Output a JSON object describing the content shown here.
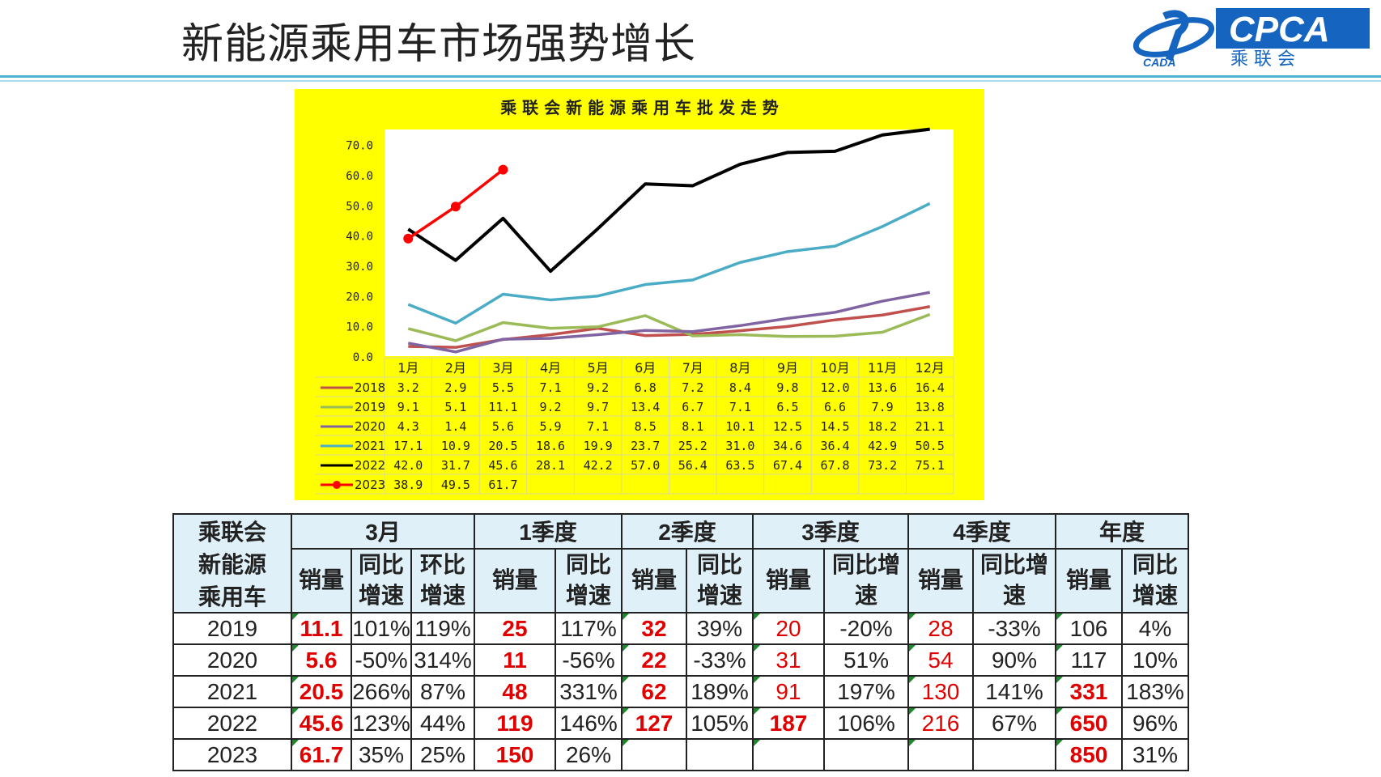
{
  "slide": {
    "title": "新能源乘用车市场强势增长",
    "logo_text": "CPCA",
    "logo_subtext": "乘 联 会",
    "logo_left_text": "CADA"
  },
  "chart_data": {
    "type": "line",
    "title": "乘 联 会 新 能 源 乘 用 车 批 发 走 势",
    "categories": [
      "1月",
      "2月",
      "3月",
      "4月",
      "5月",
      "6月",
      "7月",
      "8月",
      "9月",
      "10月",
      "11月",
      "12月"
    ],
    "ylim": [
      0,
      75
    ],
    "yticks": [
      "0.0",
      "10.0",
      "20.0",
      "30.0",
      "40.0",
      "50.0",
      "60.0",
      "70.0"
    ],
    "series": [
      {
        "name": "2018",
        "color": "#c0504d",
        "markers": false,
        "values": [
          3.2,
          2.9,
          5.5,
          7.1,
          9.2,
          6.8,
          7.2,
          8.4,
          9.8,
          12.0,
          13.6,
          16.4
        ],
        "labels": [
          "3.2",
          "2.9",
          "5.5",
          "7.1",
          "9.2",
          "6.8",
          "7.2",
          "8.4",
          "9.8",
          "12.0",
          "13.6",
          "16.4"
        ]
      },
      {
        "name": "2019",
        "color": "#9bbb59",
        "markers": false,
        "values": [
          9.1,
          5.1,
          11.1,
          9.2,
          9.7,
          13.4,
          6.7,
          7.1,
          6.5,
          6.6,
          7.9,
          13.8
        ],
        "labels": [
          "9.1",
          "5.1",
          "11.1",
          "9.2",
          "9.7",
          "13.4",
          "6.7",
          "7.1",
          "6.5",
          "6.6",
          "7.9",
          "13.8"
        ]
      },
      {
        "name": "2020",
        "color": "#8064a2",
        "markers": false,
        "values": [
          4.3,
          1.4,
          5.6,
          5.9,
          7.1,
          8.5,
          8.1,
          10.1,
          12.5,
          14.5,
          18.2,
          21.1
        ],
        "labels": [
          "4.3",
          "1.4",
          "5.6",
          "5.9",
          "7.1",
          "8.5",
          "8.1",
          "10.1",
          "12.5",
          "14.5",
          "18.2",
          "21.1"
        ]
      },
      {
        "name": "2021",
        "color": "#4bacc6",
        "markers": false,
        "values": [
          17.1,
          10.9,
          20.5,
          18.6,
          19.9,
          23.7,
          25.2,
          31.0,
          34.6,
          36.4,
          42.9,
          50.5
        ],
        "labels": [
          "17.1",
          "10.9",
          "20.5",
          "18.6",
          "19.9",
          "23.7",
          "25.2",
          "31.0",
          "34.6",
          "36.4",
          "42.9",
          "50.5"
        ]
      },
      {
        "name": "2022",
        "color": "#000000",
        "markers": false,
        "values": [
          42.0,
          31.7,
          45.6,
          28.1,
          42.2,
          57.0,
          56.4,
          63.5,
          67.4,
          67.8,
          73.2,
          75.1
        ],
        "labels": [
          "42.0",
          "31.7",
          "45.6",
          "28.1",
          "42.2",
          "57.0",
          "56.4",
          "63.5",
          "67.4",
          "67.8",
          "73.2",
          "75.1"
        ]
      },
      {
        "name": "2023",
        "color": "#ff0000",
        "markers": true,
        "values": [
          38.9,
          49.5,
          61.7,
          null,
          null,
          null,
          null,
          null,
          null,
          null,
          null,
          null
        ],
        "labels": [
          "38.9",
          "49.5",
          "61.7",
          "",
          "",
          "",
          "",
          "",
          "",
          "",
          "",
          ""
        ]
      }
    ]
  },
  "sales_table": {
    "corner": [
      "乘联会",
      "新能源",
      "乘用车"
    ],
    "groups": [
      "3月",
      "1季度",
      "2季度",
      "3季度",
      "4季度",
      "年度"
    ],
    "sub": {
      "xl": "销量",
      "tb": [
        "同比",
        "增速"
      ],
      "hb": [
        "环比",
        "增速"
      ],
      "tb_long": [
        "同比增",
        "速"
      ]
    },
    "rows": [
      {
        "year": "2019",
        "m_sales": "11.1",
        "m_yoy": "101%",
        "m_mom": "119%",
        "q1_sales": "25",
        "q1_yoy": "117%",
        "q2_sales": "32",
        "q2_yoy": "39%",
        "q3_sales": "20",
        "q3_yoy": "-20%",
        "q4_sales": "28",
        "q4_yoy": "-33%",
        "y_sales": "106",
        "y_yoy": "4%"
      },
      {
        "year": "2020",
        "m_sales": "5.6",
        "m_yoy": "-50%",
        "m_mom": "314%",
        "q1_sales": "11",
        "q1_yoy": "-56%",
        "q2_sales": "22",
        "q2_yoy": "-33%",
        "q3_sales": "31",
        "q3_yoy": "51%",
        "q4_sales": "54",
        "q4_yoy": "90%",
        "y_sales": "117",
        "y_yoy": "10%"
      },
      {
        "year": "2021",
        "m_sales": "20.5",
        "m_yoy": "266%",
        "m_mom": "87%",
        "q1_sales": "48",
        "q1_yoy": "331%",
        "q2_sales": "62",
        "q2_yoy": "189%",
        "q3_sales": "91",
        "q3_yoy": "197%",
        "q4_sales": "130",
        "q4_yoy": "141%",
        "y_sales": "331",
        "y_yoy": "183%"
      },
      {
        "year": "2022",
        "m_sales": "45.6",
        "m_yoy": "123%",
        "m_mom": "44%",
        "q1_sales": "119",
        "q1_yoy": "146%",
        "q2_sales": "127",
        "q2_yoy": "105%",
        "q3_sales": "187",
        "q3_yoy": "106%",
        "q4_sales": "216",
        "q4_yoy": "67%",
        "y_sales": "650",
        "y_yoy": "96%"
      },
      {
        "year": "2023",
        "m_sales": "61.7",
        "m_yoy": "35%",
        "m_mom": "25%",
        "q1_sales": "150",
        "q1_yoy": "26%",
        "q2_sales": "",
        "q2_yoy": "",
        "q3_sales": "",
        "q3_yoy": "",
        "q4_sales": "",
        "q4_yoy": "",
        "y_sales": "850",
        "y_yoy": "31%"
      }
    ]
  },
  "colors": {
    "rule": "#4ab6cf",
    "panel_bg": "#ffff00",
    "header_bg": "#dff0f8",
    "highlight_red": "#e00000",
    "logo_blue": "#1565c0"
  }
}
